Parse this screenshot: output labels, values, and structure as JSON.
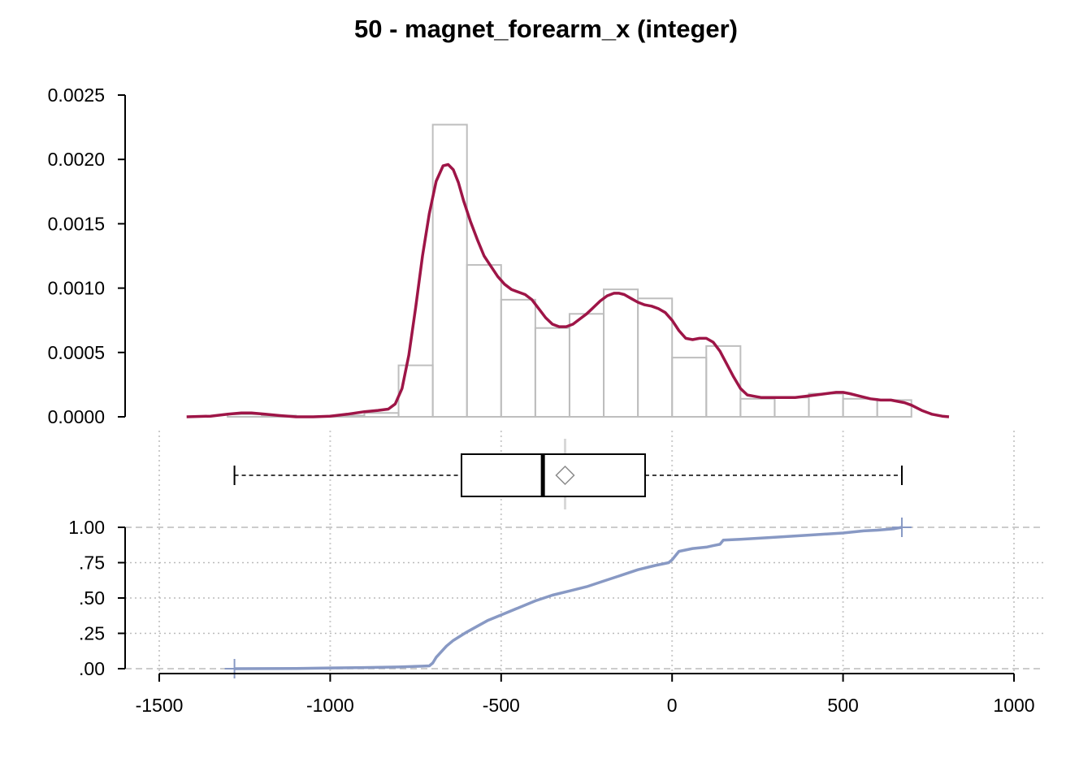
{
  "chart_data": {
    "title": "50 - magnet_forearm_x (integer)",
    "type": "histogram+density+boxplot+ecdf",
    "x_axis": {
      "range": [
        -1500,
        1000
      ],
      "ticks": [
        -1500,
        -1000,
        -500,
        0,
        500,
        1000
      ],
      "tick_labels": [
        "-1500",
        "-1000",
        "-500",
        "0",
        "500",
        "1000"
      ]
    },
    "grid": true,
    "histogram": {
      "y_range": [
        0,
        0.0025
      ],
      "y_ticks": [
        0,
        0.0005,
        0.001,
        0.0015,
        0.002,
        0.0025
      ],
      "y_tick_labels": [
        "0.0000",
        "0.0005",
        "0.0010",
        "0.0015",
        "0.0020",
        "0.0025"
      ],
      "bin_width": 100,
      "bins": [
        {
          "start": -1300,
          "density": 2e-05
        },
        {
          "start": -1200,
          "density": 1e-05
        },
        {
          "start": -1100,
          "density": 0.0
        },
        {
          "start": -1000,
          "density": 1e-05
        },
        {
          "start": -900,
          "density": 3e-05
        },
        {
          "start": -800,
          "density": 0.0004
        },
        {
          "start": -700,
          "density": 0.00227
        },
        {
          "start": -600,
          "density": 0.00118
        },
        {
          "start": -500,
          "density": 0.00091
        },
        {
          "start": -400,
          "density": 0.00069
        },
        {
          "start": -300,
          "density": 0.0008
        },
        {
          "start": -200,
          "density": 0.00099
        },
        {
          "start": -100,
          "density": 0.00092
        },
        {
          "start": 0,
          "density": 0.00046
        },
        {
          "start": 100,
          "density": 0.00055
        },
        {
          "start": 200,
          "density": 0.00014
        },
        {
          "start": 300,
          "density": 0.00015
        },
        {
          "start": 400,
          "density": 0.00018
        },
        {
          "start": 500,
          "density": 0.00014
        },
        {
          "start": 600,
          "density": 0.00013
        }
      ]
    },
    "density": {
      "x": [
        -1420,
        -1350,
        -1300,
        -1260,
        -1230,
        -1190,
        -1150,
        -1100,
        -1050,
        -1000,
        -950,
        -900,
        -860,
        -830,
        -810,
        -790,
        -770,
        -750,
        -730,
        -710,
        -690,
        -670,
        -655,
        -640,
        -625,
        -610,
        -590,
        -570,
        -550,
        -530,
        -510,
        -490,
        -470,
        -450,
        -430,
        -410,
        -390,
        -370,
        -350,
        -330,
        -310,
        -290,
        -270,
        -250,
        -230,
        -210,
        -190,
        -170,
        -155,
        -140,
        -120,
        -100,
        -80,
        -60,
        -40,
        -20,
        0,
        20,
        40,
        60,
        80,
        100,
        120,
        140,
        160,
        180,
        200,
        220,
        240,
        260,
        280,
        300,
        330,
        360,
        390,
        420,
        450,
        480,
        500,
        520,
        550,
        580,
        610,
        640,
        660,
        680,
        700,
        730,
        760,
        790,
        810
      ],
      "y": [
        0,
        5e-06,
        2e-05,
        3e-05,
        3e-05,
        2e-05,
        1e-05,
        0,
        0,
        5e-06,
        2e-05,
        4e-05,
        5e-05,
        6e-05,
        0.0001,
        0.00022,
        0.00048,
        0.00085,
        0.00125,
        0.00158,
        0.00183,
        0.00195,
        0.00196,
        0.00192,
        0.00182,
        0.00168,
        0.00152,
        0.00138,
        0.00125,
        0.00117,
        0.00109,
        0.00103,
        0.00099,
        0.00097,
        0.00095,
        0.00091,
        0.00084,
        0.00077,
        0.00072,
        0.0007,
        0.0007,
        0.00072,
        0.00076,
        0.0008,
        0.00085,
        0.0009,
        0.00094,
        0.00096,
        0.00096,
        0.00095,
        0.00092,
        0.00089,
        0.00087,
        0.00086,
        0.00084,
        0.00081,
        0.00075,
        0.00067,
        0.00061,
        0.0006,
        0.00061,
        0.00061,
        0.00058,
        0.00051,
        0.00041,
        0.00031,
        0.00022,
        0.00017,
        0.00016,
        0.00015,
        0.00015,
        0.00015,
        0.00015,
        0.00015,
        0.00016,
        0.00017,
        0.00018,
        0.00019,
        0.00019,
        0.00018,
        0.00016,
        0.00014,
        0.00013,
        0.00013,
        0.00012,
        0.00011,
        9e-05,
        5e-05,
        2e-05,
        5e-06,
        0
      ]
    },
    "boxplot": {
      "whisker_low": -1280,
      "q1": -616,
      "median": -378,
      "mean": -313,
      "q3": -79,
      "whisker_high": 672
    },
    "ecdf": {
      "y_range": [
        0,
        1
      ],
      "y_ticks": [
        0,
        0.25,
        0.5,
        0.75,
        1
      ],
      "y_tick_labels": [
        ".00",
        ".25",
        ".50",
        ".75",
        "1.00"
      ],
      "x": [
        -1280,
        -1100,
        -1000,
        -900,
        -800,
        -730,
        -710,
        -700,
        -690,
        -675,
        -660,
        -640,
        -620,
        -600,
        -570,
        -540,
        -500,
        -450,
        -400,
        -350,
        -300,
        -250,
        -200,
        -150,
        -100,
        -50,
        -10,
        0,
        20,
        60,
        100,
        120,
        140,
        150,
        200,
        300,
        400,
        500,
        560,
        600,
        650,
        672
      ],
      "y": [
        0,
        0.002,
        0.005,
        0.008,
        0.012,
        0.018,
        0.02,
        0.04,
        0.08,
        0.12,
        0.16,
        0.2,
        0.23,
        0.26,
        0.3,
        0.34,
        0.38,
        0.43,
        0.48,
        0.52,
        0.55,
        0.58,
        0.62,
        0.66,
        0.7,
        0.73,
        0.75,
        0.77,
        0.83,
        0.85,
        0.86,
        0.87,
        0.88,
        0.91,
        0.915,
        0.93,
        0.945,
        0.96,
        0.975,
        0.98,
        0.99,
        1.0
      ]
    }
  }
}
